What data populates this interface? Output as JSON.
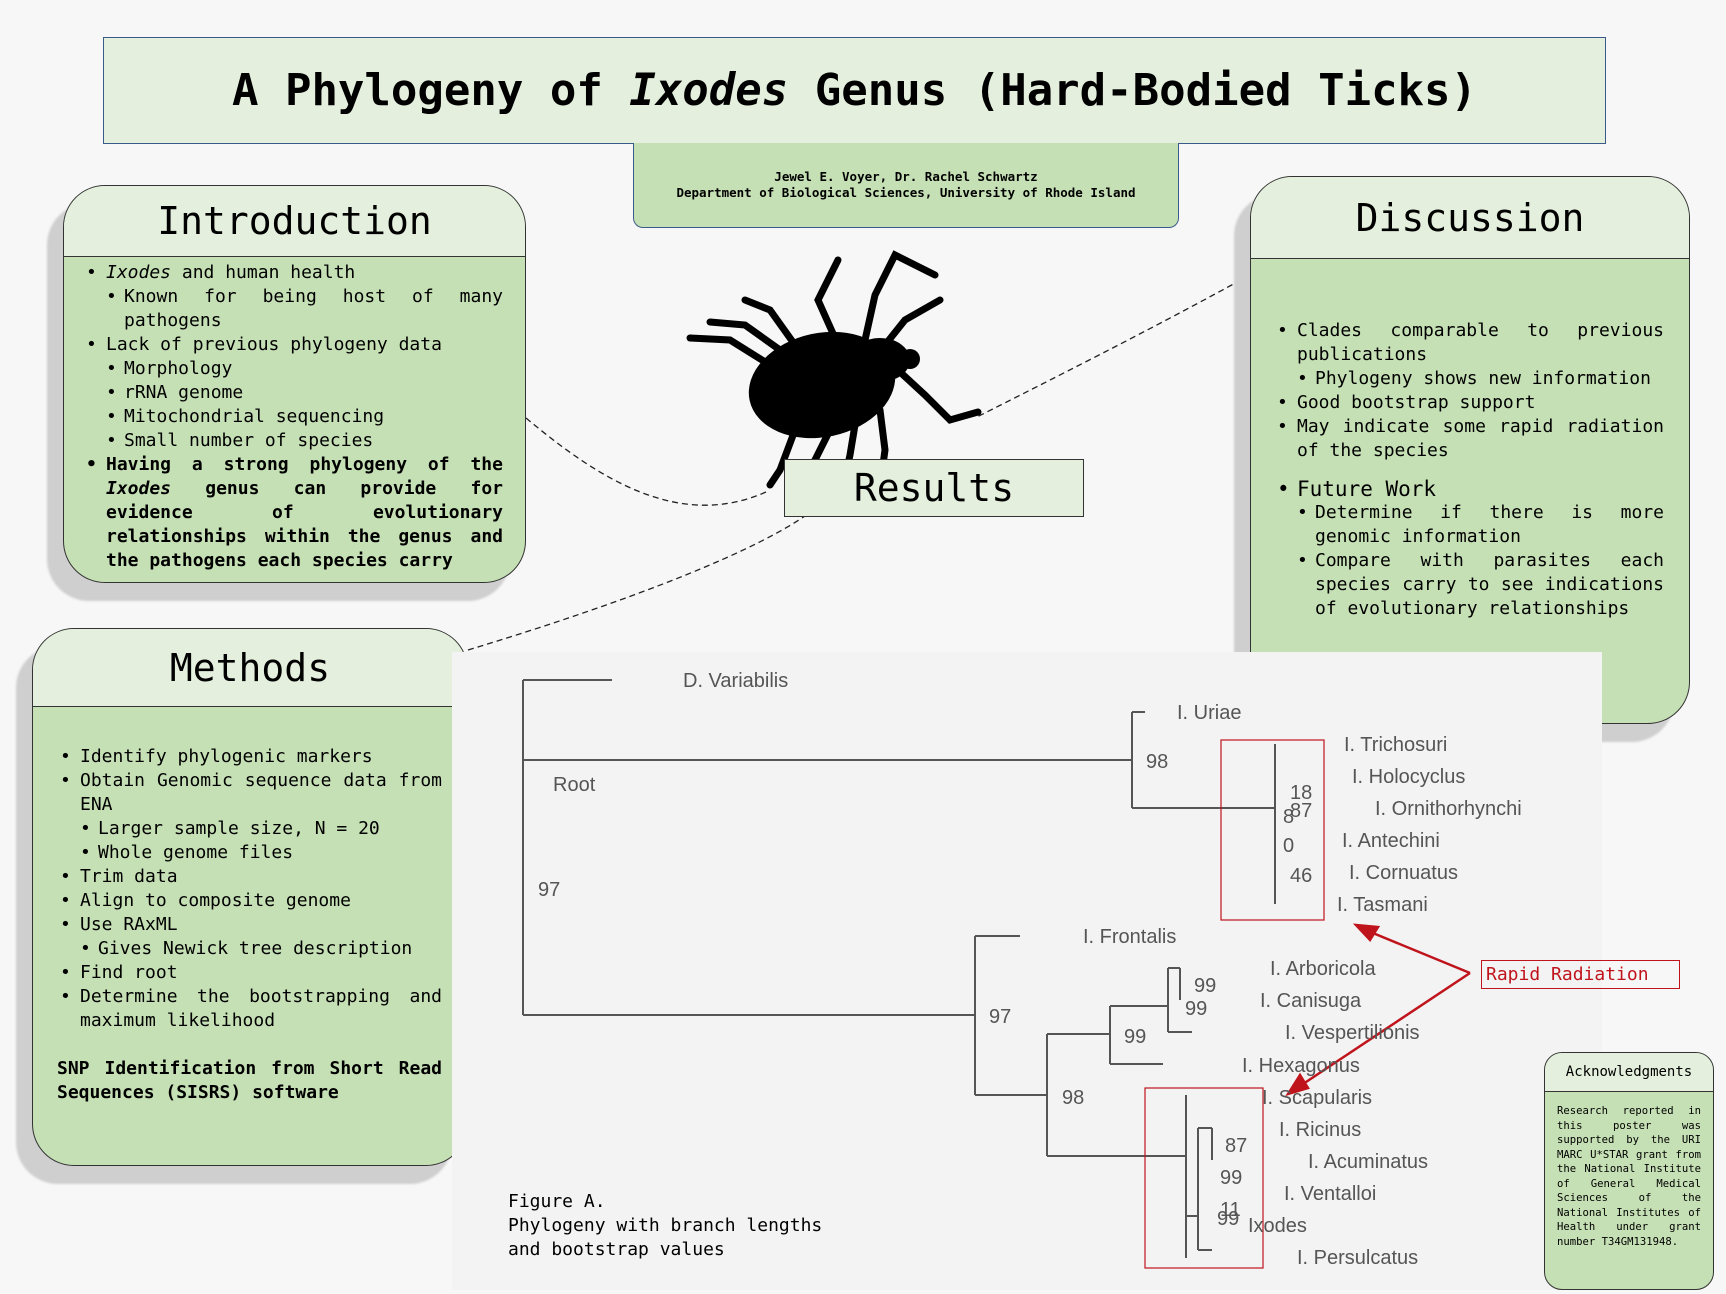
{
  "title": {
    "pre": "A Phylogeny of ",
    "italic": "Ixodes",
    "post": " Genus (Hard-Bodied Ticks)"
  },
  "authors": {
    "names": "Jewel E. Voyer, Dr. Rachel Schwartz",
    "affiliation": "Department of Biological Sciences, University of Rhode Island"
  },
  "introduction": {
    "heading": "Introduction",
    "b1_italic": "Ixodes",
    "b1_rest": " and human health",
    "b1_sub1": "Known for being host of many pathogens",
    "b2": "Lack of previous phylogeny data",
    "b2_subs": [
      "Morphology",
      "rRNA genome",
      "Mitochondrial sequencing",
      "Small number of species"
    ],
    "b3_a": "Having a strong phylogeny of the ",
    "b3_italic": "Ixodes",
    "b3_b": " genus can provide for evidence of evolutionary relationships within the genus and the pathogens each species carry"
  },
  "methods": {
    "heading": "Methods",
    "items": [
      "Identify phylogenic markers",
      "Obtain Genomic sequence data from ENA",
      "Larger sample size, N = 20",
      "Whole genome files",
      "Trim data",
      "Align to composite genome",
      "Use RAxML",
      "Gives Newick tree description",
      "Find root",
      "Determine the bootstrapping and maximum likelihood"
    ],
    "software": "SNP Identification from Short Read Sequences (SISRS) software"
  },
  "discussion": {
    "heading": "Discussion",
    "items": [
      "Clades comparable to previous publications",
      "Phylogeny shows new information",
      "Good bootstrap support",
      "May indicate some rapid radiation of the species"
    ],
    "future_heading": "Future Work",
    "future_items": [
      "Determine if there is more genomic information",
      "Compare with parasites each species carry to see indications of evolutionary relationships"
    ]
  },
  "results": {
    "heading": "Results"
  },
  "acknowledgments": {
    "heading": "Acknowledgments",
    "text": "Research reported in this poster was supported by the URI MARC U*STAR grant from the National Institute of General Medical Sciences of the National Institutes of Health under grant number T34GM131948."
  },
  "figure": {
    "caption_title": "Figure A.",
    "caption_line1": "Phylogeny with branch lengths",
    "caption_line2": "and bootstrap values",
    "rapid_radiation": "Rapid Radiation",
    "root_label": "Root",
    "taxa": {
      "d_variabilis": "D. Variabilis",
      "uriae": "I. Uriae",
      "trichosuri": "I. Trichosuri",
      "holocyclus": "I. Holocyclus",
      "ornithorhynchi": "I. Ornithorhynchi",
      "antechini": "I. Antechini",
      "cornuatus": "I. Cornuatus",
      "tasmani": "I. Tasmani",
      "frontalis": "I. Frontalis",
      "arboricola": "I. Arboricola",
      "canisuga": "I. Canisuga",
      "vespertilionis": "I. Vespertilionis",
      "hexagonus": "I. Hexagonus",
      "scapularis": "I. Scapularis",
      "ricinus": "I. Ricinus",
      "acuminatus": "I. Acuminatus",
      "ventalloi": "I. Ventalloi",
      "ixodes": "Ixodes",
      "persulcatus": "I. Persulcatus"
    },
    "bootstrap": {
      "root_low": "97",
      "uriae_node": "98",
      "aus_18": "18",
      "aus_87": "87",
      "aus_8": "8",
      "aus_0": "0",
      "aus_46": "46",
      "frontalis_node": "97",
      "arb_99": "99",
      "can_99": "99",
      "vesp_99": "99",
      "scap_98": "98",
      "ric_87": "87",
      "ac_99": "99",
      "ven_11": "11",
      "ix_99": "99"
    }
  }
}
